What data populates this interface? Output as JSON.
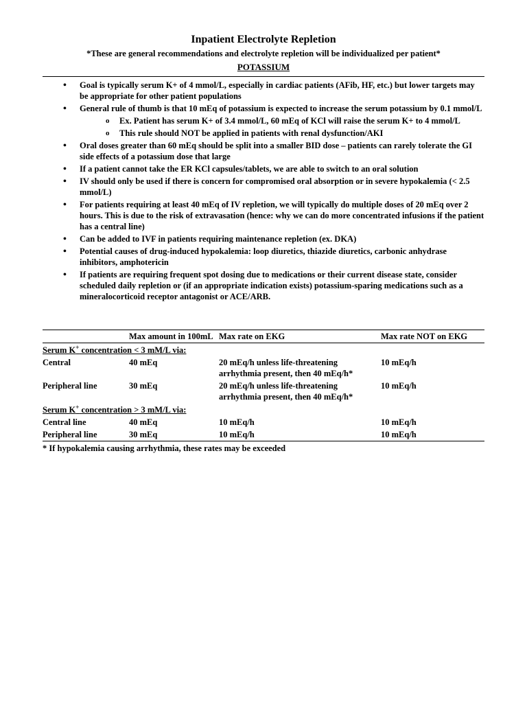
{
  "title": "Inpatient Electrolyte Repletion",
  "subtitle": "*These are general recommendations and electrolyte repletion will be individualized per patient*",
  "section_heading": "POTASSIUM",
  "bullets": {
    "b1": "Goal is typically serum K+ of 4 mmol/L, especially in cardiac patients (AFib, HF, etc.) but lower targets may be appropriate for other patient populations",
    "b2": "General rule of thumb is that 10 mEq of potassium is expected to increase the serum potassium by 0.1 mmol/L",
    "b2a": "Ex. Patient has serum K+ of 3.4 mmol/L, 60 mEq of KCl will raise the serum K+ to 4 mmol/L",
    "b2b_pre": "This rule should ",
    "b2b_not": "NOT",
    "b2b_post": " be applied in patients with renal dysfunction/AKI",
    "b3": "Oral doses greater than 60 mEq should be split into a smaller BID dose – patients can rarely tolerate the GI side effects of a potassium dose that large",
    "b4": "If a patient cannot take the ER KCl capsules/tablets, we are able to switch to an oral solution",
    "b5": "IV should only be used if there is concern for compromised oral absorption or in severe hypokalemia (< 2.5 mmol/L)",
    "b6": "For patients requiring at least 40 mEq of IV repletion, we will typically do multiple doses of 20 mEq over 2 hours. This is due to the risk of extravasation (hence: why we can do more concentrated infusions if the patient has a central line)",
    "b7": "Can be added to IVF in patients requiring maintenance repletion (ex. DKA)",
    "b8": "Potential causes of drug-induced hypokalemia: loop diuretics, thiazide diuretics, carbonic anhydrase inhibitors, amphotericin",
    "b9": "If patients are requiring frequent spot dosing due to medications or their current disease state, consider scheduled daily repletion or (if an appropriate indication exists) potassium-sparing medications such as a mineralocorticoid receptor antagonist or ACE/ARB."
  },
  "table": {
    "headers": {
      "h2": "Max amount in 100mL",
      "h3": "Max rate on EKG",
      "h4": "Max rate NOT on EKG"
    },
    "group1_label_pre": "Serum K",
    "group1_label_post": " concentration < 3 mM/L via:",
    "group2_label_pre": "Serum K",
    "group2_label_post": " concentration > 3 mM/L via:",
    "sup_plus": "+",
    "rows": {
      "r1": {
        "c1": "Central",
        "c2": "40 mEq",
        "c3": "20 mEq/h unless life-threatening arrhythmia present, then 40 mEq/h*",
        "c4": "10 mEq/h"
      },
      "r2": {
        "c1": "Peripheral line",
        "c2": "30 mEq",
        "c3": "20 mEq/h unless life-threatening arrhythmia present, then 40 mEq/h*",
        "c4": "10 mEq/h"
      },
      "r3": {
        "c1": "Central line",
        "c2": "40 mEq",
        "c3": "10 mEq/h",
        "c4": "10 mEq/h"
      },
      "r4": {
        "c1": "Peripheral line",
        "c2": "30 mEq",
        "c3": "10 mEq/h",
        "c4": "10 mEq/h"
      }
    },
    "footnote": "* If hypokalemia causing arrhythmia, these rates may be exceeded"
  }
}
